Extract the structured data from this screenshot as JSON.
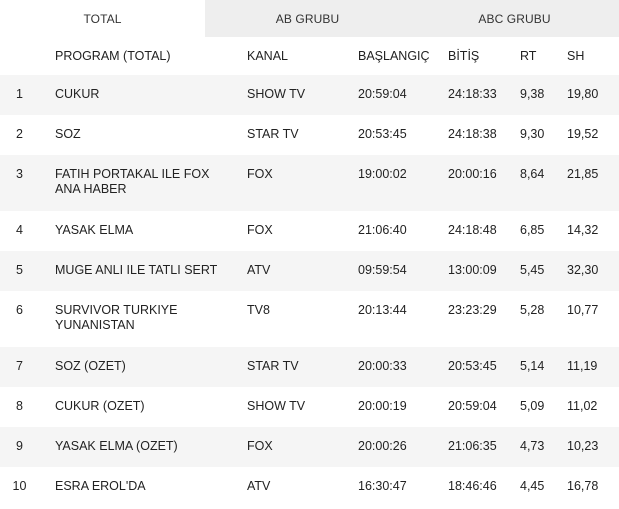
{
  "tabs": [
    "TOTAL",
    "AB GRUBU",
    "ABC GRUBU"
  ],
  "table": {
    "headers": [
      "",
      "PROGRAM (TOTAL)",
      "KANAL",
      "BAŞLANGIÇ",
      "BİTİŞ",
      "RT",
      "SH"
    ],
    "rows": [
      [
        "1",
        "CUKUR",
        "SHOW TV",
        "20:59:04",
        "24:18:33",
        "9,38",
        "19,80"
      ],
      [
        "2",
        "SOZ",
        "STAR TV",
        "20:53:45",
        "24:18:38",
        "9,30",
        "19,52"
      ],
      [
        "3",
        "FATIH PORTAKAL ILE FOX ANA HABER",
        "FOX",
        "19:00:02",
        "20:00:16",
        "8,64",
        "21,85"
      ],
      [
        "4",
        "YASAK ELMA",
        "FOX",
        "21:06:40",
        "24:18:48",
        "6,85",
        "14,32"
      ],
      [
        "5",
        "MUGE ANLI ILE TATLI SERT",
        "ATV",
        "09:59:54",
        "13:00:09",
        "5,45",
        "32,30"
      ],
      [
        "6",
        "SURVIVOR TURKIYE YUNANISTAN",
        "TV8",
        "20:13:44",
        "23:23:29",
        "5,28",
        "10,77"
      ],
      [
        "7",
        "SOZ (OZET)",
        "STAR TV",
        "20:00:33",
        "20:53:45",
        "5,14",
        "11,19"
      ],
      [
        "8",
        "CUKUR (OZET)",
        "SHOW TV",
        "20:00:19",
        "20:59:04",
        "5,09",
        "11,02"
      ],
      [
        "9",
        "YASAK ELMA (OZET)",
        "FOX",
        "20:00:26",
        "21:06:35",
        "4,73",
        "10,23"
      ],
      [
        "10",
        "ESRA EROL'DA",
        "ATV",
        "16:30:47",
        "18:46:46",
        "4,45",
        "16,78"
      ]
    ]
  }
}
